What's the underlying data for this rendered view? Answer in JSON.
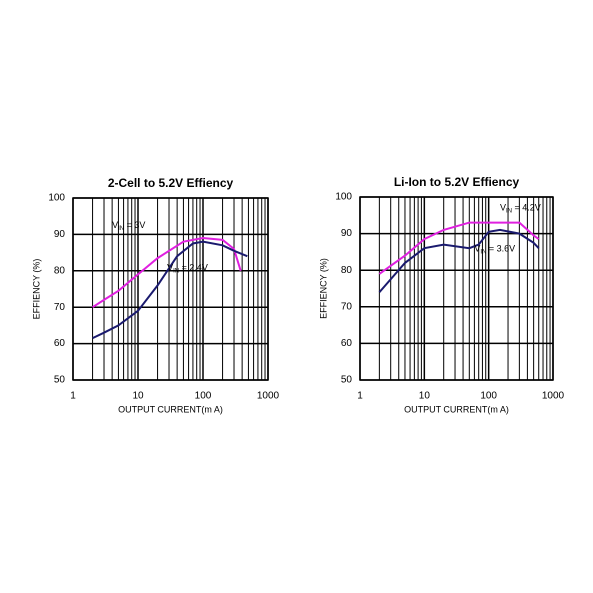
{
  "chart_data": [
    {
      "type": "line",
      "title": "2-Cell to 5.2V Effiency",
      "y_label": "EFFIENCY (%)",
      "x_label": "OUTPUT CURRENT(m A)",
      "x_scale": "log",
      "xlim": [
        1,
        1000
      ],
      "xticks": [
        1,
        10,
        100,
        1000
      ],
      "ylim": [
        50,
        100
      ],
      "yticks": [
        50,
        60,
        70,
        80,
        90,
        100
      ],
      "grid": true,
      "series": [
        {
          "color": "#e020e0",
          "x": [
            2,
            3,
            5,
            10,
            20,
            50,
            100,
            200,
            300,
            380
          ],
          "values": [
            70,
            72,
            74.5,
            79,
            83.5,
            88,
            89,
            88.5,
            86,
            80
          ]
        },
        {
          "color": "#1a1a6e",
          "x": [
            2,
            3,
            5,
            10,
            20,
            40,
            70,
            100,
            200,
            300,
            480
          ],
          "values": [
            61.5,
            63,
            65,
            69,
            76,
            84,
            87.5,
            88,
            87,
            85.5,
            84
          ]
        }
      ],
      "annotations": [
        {
          "text": "V",
          "sub": "IN",
          "rest": " = 3V",
          "x": 4,
          "y": 92.3
        },
        {
          "text": "V",
          "sub": "IN",
          "rest": " = 2.4V",
          "x": 28,
          "y": 80.7
        }
      ]
    },
    {
      "type": "line",
      "title": "Li-Ion to 5.2V Effiency",
      "y_label": "EFFIENCY (%)",
      "x_label": "OUTPUT CURRENT(m A)",
      "x_scale": "log",
      "xlim": [
        1,
        1000
      ],
      "xticks": [
        1,
        10,
        100,
        1000
      ],
      "ylim": [
        50,
        100
      ],
      "yticks": [
        50,
        60,
        70,
        80,
        90,
        100
      ],
      "grid": true,
      "series": [
        {
          "color": "#e020e0",
          "x": [
            2,
            5,
            10,
            20,
            50,
            100,
            200,
            300,
            500,
            600
          ],
          "values": [
            79,
            84,
            88.5,
            91,
            93,
            93,
            93,
            93,
            89.5,
            88.5
          ]
        },
        {
          "color": "#1a1a6e",
          "x": [
            2,
            5,
            10,
            20,
            50,
            70,
            100,
            150,
            300,
            500,
            600
          ],
          "values": [
            74,
            82,
            86,
            87,
            86,
            87,
            90.5,
            91,
            90,
            87.5,
            86
          ]
        }
      ],
      "annotations": [
        {
          "text": "V",
          "sub": "IN",
          "rest": " = 4.2V",
          "x": 150,
          "y": 96.8
        },
        {
          "text": "V",
          "sub": "IN",
          "rest": " = 3.6V",
          "x": 60,
          "y": 85.7
        }
      ]
    }
  ]
}
